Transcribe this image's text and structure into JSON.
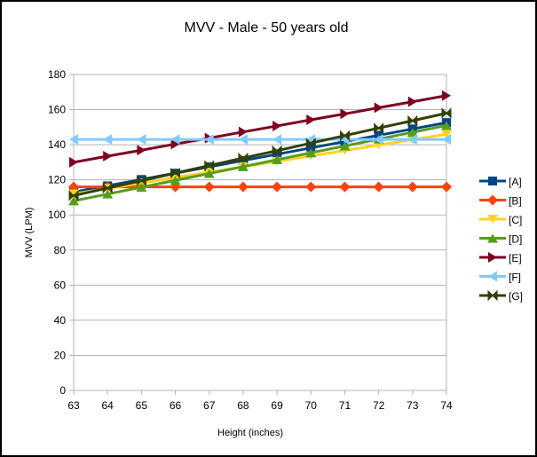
{
  "chart_data": {
    "type": "line",
    "title": "MVV - Male - 50 years old",
    "xlabel": "Height (inches)",
    "ylabel": "MVV (LPM)",
    "x": [
      63,
      64,
      65,
      66,
      67,
      68,
      69,
      70,
      71,
      72,
      73,
      74
    ],
    "ylim": [
      0,
      180
    ],
    "yticks": [
      0,
      20,
      40,
      60,
      80,
      100,
      120,
      140,
      160,
      180
    ],
    "grid": true,
    "legend_position": "right",
    "series": [
      {
        "name": "[A]",
        "color": "#004586",
        "marker": "square",
        "values": [
          113,
          116.6,
          120.2,
          123.8,
          127.4,
          131,
          134.6,
          138.2,
          141.8,
          145.4,
          149,
          152.6
        ]
      },
      {
        "name": "[B]",
        "color": "#ff420e",
        "marker": "diamond",
        "values": [
          116,
          116,
          116,
          116,
          116,
          116,
          116,
          116,
          116,
          116,
          116,
          116
        ]
      },
      {
        "name": "[C]",
        "color": "#ffd320",
        "marker": "triangle-down",
        "values": [
          112,
          115.1,
          118.2,
          121.3,
          124.4,
          127.5,
          130.5,
          133.6,
          136.7,
          139.8,
          142.9,
          146
        ]
      },
      {
        "name": "[D]",
        "color": "#579d1c",
        "marker": "triangle-up",
        "values": [
          108,
          111.9,
          115.8,
          119.7,
          123.6,
          127.5,
          131.5,
          135.4,
          139.3,
          143.2,
          147.1,
          151
        ]
      },
      {
        "name": "[E]",
        "color": "#7e0021",
        "marker": "triangle-right",
        "values": [
          130,
          133.5,
          136.9,
          140.4,
          143.8,
          147.3,
          150.7,
          154.2,
          157.6,
          161.1,
          164.5,
          168
        ]
      },
      {
        "name": "[F]",
        "color": "#83caff",
        "marker": "triangle-left",
        "values": [
          143,
          143,
          143,
          143,
          143,
          143,
          143,
          143,
          143,
          143,
          143,
          143
        ]
      },
      {
        "name": "[G]",
        "color": "#314004",
        "marker": "bowtie",
        "values": [
          111,
          115.3,
          119.5,
          123.8,
          128.1,
          132.4,
          136.6,
          140.9,
          145.2,
          149.5,
          153.7,
          158
        ]
      }
    ]
  }
}
